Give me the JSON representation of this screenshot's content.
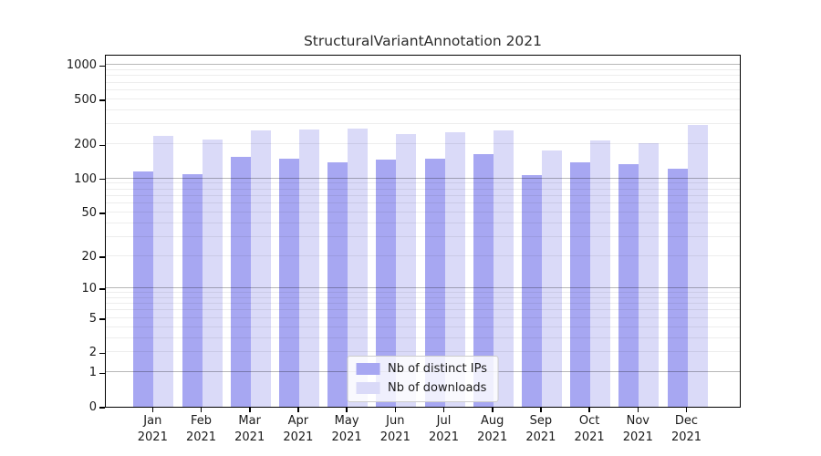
{
  "chart_data": {
    "type": "bar",
    "title": "StructuralVariantAnnotation 2021",
    "categories": [
      "Jan 2021",
      "Feb 2021",
      "Mar 2021",
      "Apr 2021",
      "May 2021",
      "Jun 2021",
      "Jul 2021",
      "Aug 2021",
      "Sep 2021",
      "Oct 2021",
      "Nov 2021",
      "Dec 2021"
    ],
    "series": [
      {
        "name": "Nb of distinct IPs",
        "color": "#a7a7f2",
        "values": [
          116,
          110,
          154,
          151,
          140,
          148,
          151,
          165,
          108,
          138,
          133,
          123
        ]
      },
      {
        "name": "Nb of downloads",
        "color": "#dadaf8",
        "values": [
          236,
          219,
          268,
          273,
          274,
          249,
          258,
          268,
          178,
          218,
          204,
          295
        ]
      }
    ],
    "y_axis": {
      "scale": "log10(1+value)",
      "tick_values": [
        0,
        1,
        2,
        5,
        10,
        20,
        50,
        100,
        200,
        500,
        1000
      ],
      "tick_labels": [
        "0",
        "1",
        "2",
        "5",
        "10",
        "20",
        "50",
        "100",
        "200",
        "500",
        "1000"
      ],
      "range": [
        0,
        1270
      ]
    },
    "x_axis": {
      "tick_labels_line1": [
        "Jan",
        "Feb",
        "Mar",
        "Apr",
        "May",
        "Jun",
        "Jul",
        "Aug",
        "Sep",
        "Oct",
        "Nov",
        "Dec"
      ],
      "tick_labels_line2": "2021"
    },
    "legend": {
      "position": "inside-bottom-center",
      "entries": [
        "Nb of distinct IPs",
        "Nb of downloads"
      ]
    },
    "grid": {
      "horizontal_major": true,
      "horizontal_minor": true,
      "vertical": false
    }
  },
  "colors": {
    "bar_ips": "#a7a7f2",
    "bar_downloads": "#dadaf8",
    "grid_major": "rgba(0,0,0,0.28)",
    "grid_minor": "rgba(0,0,0,0.07)",
    "axis": "#000000",
    "text": "#1a1a1a",
    "title": "#2b2b2b",
    "legend_border": "#cccccc",
    "legend_bg": "rgba(255,255,255,0.82)"
  }
}
